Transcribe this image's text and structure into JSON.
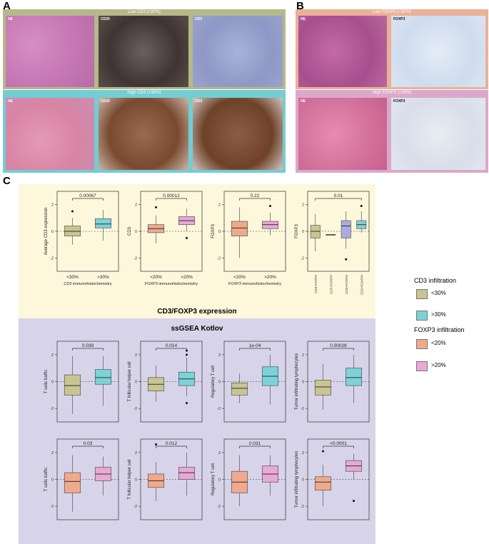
{
  "panels": {
    "a_label": "A",
    "b_label": "B",
    "c_label": "C",
    "a_low_title": "Low CD3 (<30%)",
    "a_high_title": "High CD3 (>30%)",
    "b_low_title": "Low FOXP3 (<30%)",
    "b_high_title": "High FOXP3 (>30%)",
    "a_low_tags": [
      "HE",
      "CD20",
      "CD3"
    ],
    "a_high_tags": [
      "HE",
      "CD20",
      "CD3"
    ],
    "b_low_tags": [
      "HE",
      "FOXP3"
    ],
    "b_high_tags": [
      "HE",
      "FOXP3"
    ]
  },
  "sections": {
    "top_title": "CD3/FOXP3 expression",
    "bottom_title": "ssGSEA Kotlov"
  },
  "legend": {
    "cd3_title": "CD3 infiltration",
    "foxp3_title": "FOXP3 infiltration",
    "items": [
      {
        "label": "<30%",
        "color": "#c8c592"
      },
      {
        "label": ">30%",
        "color": "#7dd2d8"
      },
      {
        "label": "<20%",
        "color": "#f0a98c"
      },
      {
        "label": ">20%",
        "color": "#e8a9d4"
      }
    ]
  },
  "colors": {
    "yellow_bg": "#fdf8dc",
    "lavender_bg": "#d7d4ea",
    "olive": "#c8c592",
    "teal": "#7dd2d8",
    "salmon": "#f0a98c",
    "pink": "#e8a9d4",
    "lilac": "#aaaddc",
    "green_frame": "#b5b988",
    "cyan_frame": "#73cdd3",
    "salmon_frame": "#ebb196",
    "pink_frame": "#dba8cc"
  },
  "chart_data": [
    {
      "type": "box",
      "ylabel": "Average CD3 expression",
      "xlabel": "CD3 immunohistochemistry",
      "categories": [
        "<30%",
        ">30%"
      ],
      "pvalue": "0.00067",
      "ylim": [
        -3,
        3
      ],
      "ticks": [
        -2,
        0,
        2
      ],
      "boxes": [
        {
          "min": -1.0,
          "q1": -0.35,
          "median": 0.0,
          "q3": 0.4,
          "max": 1.0,
          "outliers": [
            1.5
          ],
          "color": "#c8c592"
        },
        {
          "min": -0.7,
          "q1": 0.25,
          "median": 0.55,
          "q3": 0.95,
          "max": 1.6,
          "outliers": [],
          "color": "#7dd2d8"
        }
      ]
    },
    {
      "type": "box",
      "ylabel": "CD3",
      "xlabel": "FOXP3 immunohistochemistry",
      "categories": [
        "<20%",
        ">20%"
      ],
      "pvalue": "0.00012",
      "ylim": [
        -3,
        3
      ],
      "ticks": [
        -2,
        0,
        2
      ],
      "boxes": [
        {
          "min": -0.9,
          "q1": -0.1,
          "median": 0.2,
          "q3": 0.5,
          "max": 1.2,
          "outliers": [
            1.8
          ],
          "color": "#f0a98c"
        },
        {
          "min": 0.0,
          "q1": 0.5,
          "median": 0.8,
          "q3": 1.1,
          "max": 1.7,
          "outliers": [
            -0.5
          ],
          "color": "#e8a9d4"
        }
      ]
    },
    {
      "type": "box",
      "ylabel": "FOXP3",
      "xlabel": "FOXP3 immunohistochemistry",
      "categories": [
        "<20%",
        ">20%"
      ],
      "pvalue": "0.22",
      "ylim": [
        -3,
        3
      ],
      "ticks": [
        -2,
        0,
        2
      ],
      "boxes": [
        {
          "min": -2.0,
          "q1": -0.35,
          "median": 0.25,
          "q3": 0.75,
          "max": 1.8,
          "outliers": [],
          "color": "#f0a98c"
        },
        {
          "min": -0.3,
          "q1": 0.2,
          "median": 0.5,
          "q3": 0.75,
          "max": 1.4,
          "outliers": [
            1.9
          ],
          "color": "#e8a9d4"
        }
      ]
    },
    {
      "type": "box",
      "ylabel": "FOXP3",
      "xlabel": "",
      "categories": [
        "CD3-FOXP3-",
        "CD3-FOXP3+",
        "CD3+FOXP3-",
        "CD3+FOXP3+"
      ],
      "pvalue": "0.01",
      "ylim": [
        -3,
        3
      ],
      "ticks": [
        -2,
        0,
        2
      ],
      "boxes": [
        {
          "min": -1.5,
          "q1": -0.5,
          "median": 0.0,
          "q3": 0.45,
          "max": 1.3,
          "outliers": [],
          "color": "#c8c592"
        },
        {
          "min": -0.25,
          "q1": -0.25,
          "median": -0.25,
          "q3": -0.25,
          "max": -0.25,
          "outliers": [],
          "color": "#c8c592"
        },
        {
          "min": -1.3,
          "q1": -0.5,
          "median": 0.4,
          "q3": 0.8,
          "max": 1.5,
          "outliers": [
            -2.1
          ],
          "color": "#aaaddc"
        },
        {
          "min": -0.1,
          "q1": 0.2,
          "median": 0.5,
          "q3": 0.8,
          "max": 1.5,
          "outliers": [
            1.9
          ],
          "color": "#7dd2d8"
        }
      ]
    },
    {
      "type": "box",
      "ylabel": "T cells traffic",
      "xlabel": "",
      "categories": [
        "",
        ""
      ],
      "pvalue": "0.039",
      "ylim": [
        -3,
        3
      ],
      "ticks": [
        -2,
        0,
        2
      ],
      "boxes": [
        {
          "min": -2.4,
          "q1": -1.0,
          "median": -0.3,
          "q3": 0.5,
          "max": 1.9,
          "outliers": [],
          "color": "#c8c592"
        },
        {
          "min": -1.8,
          "q1": -0.2,
          "median": 0.3,
          "q3": 0.9,
          "max": 1.9,
          "outliers": [],
          "color": "#7dd2d8"
        }
      ]
    },
    {
      "type": "box",
      "ylabel": "T follicular helper cell",
      "xlabel": "",
      "categories": [
        "",
        ""
      ],
      "pvalue": "0.014",
      "ylim": [
        -3,
        3
      ],
      "ticks": [
        -2,
        0,
        2
      ],
      "boxes": [
        {
          "min": -1.5,
          "q1": -0.7,
          "median": -0.2,
          "q3": 0.3,
          "max": 1.2,
          "outliers": [],
          "color": "#c8c592"
        },
        {
          "min": -1.1,
          "q1": -0.3,
          "median": 0.2,
          "q3": 0.7,
          "max": 1.8,
          "outliers": [
            2.3,
            2.0,
            -1.6
          ],
          "color": "#7dd2d8"
        }
      ]
    },
    {
      "type": "box",
      "ylabel": "Regulatory T cell",
      "xlabel": "",
      "categories": [
        "",
        ""
      ],
      "pvalue": "1e-04",
      "ylim": [
        -3,
        3
      ],
      "ticks": [
        -2,
        0,
        2
      ],
      "boxes": [
        {
          "min": -1.6,
          "q1": -1.0,
          "median": -0.5,
          "q3": -0.1,
          "max": 0.6,
          "outliers": [],
          "color": "#c8c592"
        },
        {
          "min": -1.7,
          "q1": -0.3,
          "median": 0.4,
          "q3": 1.1,
          "max": 2.0,
          "outliers": [],
          "color": "#7dd2d8"
        }
      ]
    },
    {
      "type": "box",
      "ylabel": "Tumor infiltrating lymphocytes",
      "xlabel": "",
      "categories": [
        "",
        ""
      ],
      "pvalue": "0.00028",
      "ylim": [
        -3,
        3
      ],
      "ticks": [
        -2,
        0,
        2
      ],
      "boxes": [
        {
          "min": -2.1,
          "q1": -1.0,
          "median": -0.4,
          "q3": 0.1,
          "max": 1.3,
          "outliers": [],
          "color": "#c8c592"
        },
        {
          "min": -1.6,
          "q1": -0.3,
          "median": 0.3,
          "q3": 1.0,
          "max": 2.0,
          "outliers": [],
          "color": "#7dd2d8"
        }
      ]
    },
    {
      "type": "box",
      "ylabel": "T cells traffic",
      "xlabel": "",
      "categories": [
        "",
        ""
      ],
      "pvalue": "0.03",
      "ylim": [
        -3,
        3
      ],
      "ticks": [
        -2,
        0,
        2
      ],
      "boxes": [
        {
          "min": -2.4,
          "q1": -1.0,
          "median": -0.15,
          "q3": 0.5,
          "max": 1.8,
          "outliers": [],
          "color": "#f0a98c"
        },
        {
          "min": -1.2,
          "q1": -0.1,
          "median": 0.4,
          "q3": 0.9,
          "max": 1.7,
          "outliers": [],
          "color": "#e8a9d4"
        }
      ]
    },
    {
      "type": "box",
      "ylabel": "T follicular helper cell",
      "xlabel": "",
      "categories": [
        "",
        ""
      ],
      "pvalue": "0.012",
      "ylim": [
        -3,
        3
      ],
      "ticks": [
        -2,
        0,
        2
      ],
      "boxes": [
        {
          "min": -1.6,
          "q1": -0.6,
          "median": -0.1,
          "q3": 0.4,
          "max": 1.3,
          "outliers": [
            2.6
          ],
          "color": "#f0a98c"
        },
        {
          "min": -1.2,
          "q1": 0.0,
          "median": 0.5,
          "q3": 0.9,
          "max": 2.0,
          "outliers": [],
          "color": "#e8a9d4"
        }
      ]
    },
    {
      "type": "box",
      "ylabel": "Regulatory T cell",
      "xlabel": "",
      "categories": [
        "",
        ""
      ],
      "pvalue": "0.031",
      "ylim": [
        -3,
        3
      ],
      "ticks": [
        -2,
        0,
        2
      ],
      "boxes": [
        {
          "min": -2.0,
          "q1": -1.0,
          "median": -0.2,
          "q3": 0.6,
          "max": 1.8,
          "outliers": [],
          "color": "#f0a98c"
        },
        {
          "min": -1.2,
          "q1": -0.2,
          "median": 0.4,
          "q3": 1.0,
          "max": 1.8,
          "outliers": [],
          "color": "#e8a9d4"
        }
      ]
    },
    {
      "type": "box",
      "ylabel": "Tumor infiltrating lymphocytes",
      "xlabel": "",
      "categories": [
        "",
        ""
      ],
      "pvalue": "<0.0001",
      "ylim": [
        -3,
        3
      ],
      "ticks": [
        -2,
        0,
        2
      ],
      "boxes": [
        {
          "min": -2.0,
          "q1": -0.8,
          "median": -0.2,
          "q3": 0.2,
          "max": 1.1,
          "outliers": [
            2.1
          ],
          "color": "#f0a98c"
        },
        {
          "min": 0.0,
          "q1": 0.6,
          "median": 1.0,
          "q3": 1.4,
          "max": 1.9,
          "outliers": [
            -1.6
          ],
          "color": "#e8a9d4"
        }
      ]
    }
  ]
}
